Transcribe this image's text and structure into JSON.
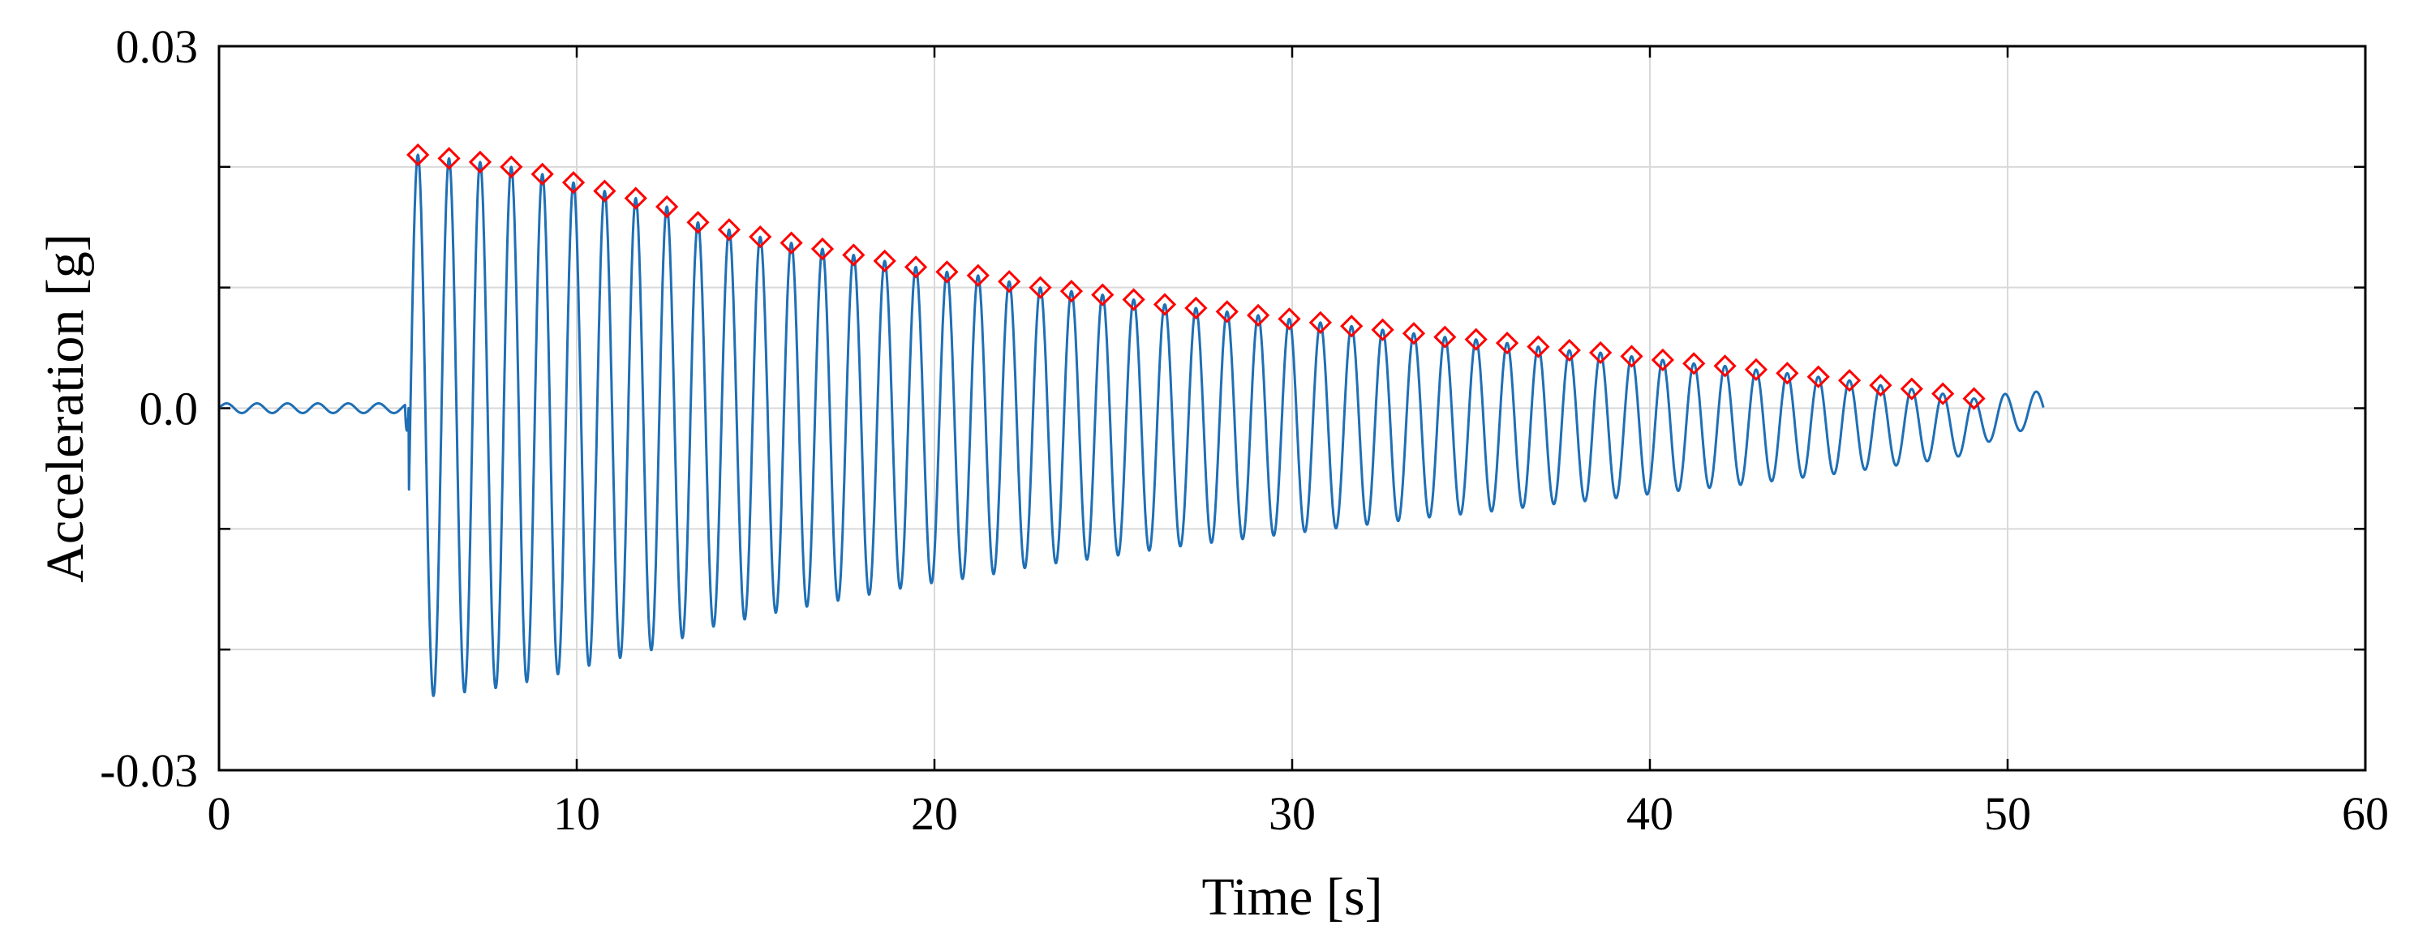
{
  "chart_data": {
    "type": "line",
    "xlabel": "Time [s]",
    "ylabel": "Acceleration [g]",
    "xlim": [
      0,
      60
    ],
    "ylim": [
      -0.03,
      0.03
    ],
    "x_ticks": [
      0,
      10,
      20,
      30,
      40,
      50,
      60
    ],
    "x_tick_labels": [
      "0",
      "10",
      "20",
      "30",
      "40",
      "50",
      "60"
    ],
    "y_ticks": [
      -0.03,
      -0.02,
      -0.01,
      0.0,
      0.01,
      0.02,
      0.03
    ],
    "y_tick_labels": [
      "-0.03",
      "",
      "",
      "0.0",
      "",
      "",
      "0.03"
    ],
    "grid": true,
    "series": [
      {
        "kind": "line",
        "color": "#1f6fb5",
        "pre_excitation": {
          "t_start": 0,
          "t_end": 5.2,
          "amplitude": 0.0004,
          "period": 0.85
        },
        "free_decay": {
          "t_start": 5.3,
          "t_end": 51.0,
          "period": 0.87,
          "mean_offset": -0.0015
        }
      },
      {
        "kind": "peak-markers",
        "marker": "diamond",
        "color": "#ff0000",
        "x": [
          5.56,
          6.43,
          7.3,
          8.17,
          9.04,
          9.91,
          10.78,
          11.65,
          12.52,
          13.39,
          14.26,
          15.13,
          16.0,
          16.87,
          17.74,
          18.61,
          19.48,
          20.35,
          21.22,
          22.09,
          22.96,
          23.83,
          24.7,
          25.57,
          26.44,
          27.31,
          28.18,
          29.05,
          29.92,
          30.79,
          31.66,
          32.53,
          33.4,
          34.27,
          35.14,
          36.01,
          36.88,
          37.75,
          38.62,
          39.49,
          40.36,
          41.23,
          42.1,
          42.97,
          43.84,
          44.71,
          45.58,
          46.45,
          47.32,
          48.19,
          49.06
        ],
        "y": [
          0.021,
          0.0207,
          0.0204,
          0.02,
          0.0194,
          0.0187,
          0.018,
          0.0174,
          0.0167,
          0.0154,
          0.0148,
          0.0142,
          0.0137,
          0.0132,
          0.0127,
          0.0122,
          0.0117,
          0.0113,
          0.011,
          0.0105,
          0.01,
          0.0097,
          0.0094,
          0.009,
          0.0086,
          0.0083,
          0.008,
          0.0077,
          0.0074,
          0.0071,
          0.0068,
          0.0065,
          0.0062,
          0.0059,
          0.0057,
          0.0054,
          0.0051,
          0.0048,
          0.0046,
          0.0043,
          0.004,
          0.0037,
          0.0035,
          0.0032,
          0.0029,
          0.0026,
          0.0023,
          0.0019,
          0.0016,
          0.0012,
          0.0008
        ]
      }
    ]
  }
}
